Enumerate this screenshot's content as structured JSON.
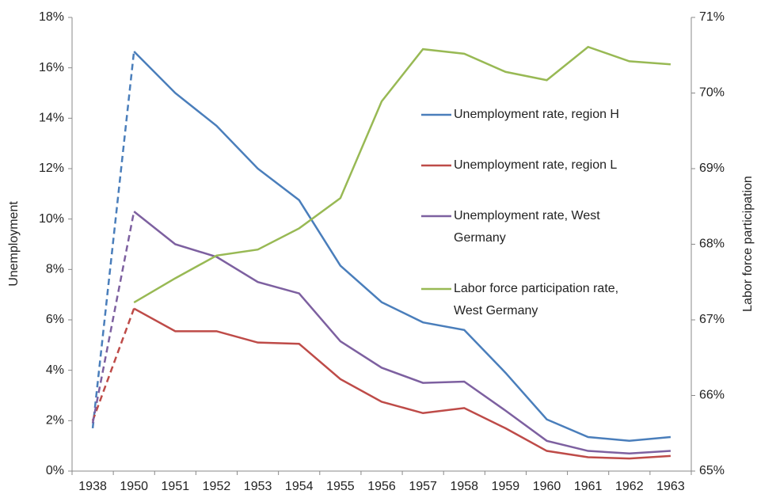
{
  "chart_data": {
    "type": "line",
    "y_label": "Unemployment",
    "y2_label": "Labor force participation",
    "categories": [
      "1938",
      "1950",
      "1951",
      "1952",
      "1953",
      "1954",
      "1955",
      "1956",
      "1957",
      "1958",
      "1959",
      "1960",
      "1961",
      "1962",
      "1963"
    ],
    "ylim": [
      0,
      18
    ],
    "yticks": [
      {
        "value": 0,
        "label": "0%"
      },
      {
        "value": 2,
        "label": "2%"
      },
      {
        "value": 4,
        "label": "4%"
      },
      {
        "value": 6,
        "label": "6%"
      },
      {
        "value": 8,
        "label": "8%"
      },
      {
        "value": 10,
        "label": "10%"
      },
      {
        "value": 12,
        "label": "12%"
      },
      {
        "value": 14,
        "label": "14%"
      },
      {
        "value": 16,
        "label": "16%"
      },
      {
        "value": 18,
        "label": "18%"
      }
    ],
    "y2lim": [
      65,
      71
    ],
    "y2ticks": [
      {
        "value": 65,
        "label": "65%"
      },
      {
        "value": 66,
        "label": "66%"
      },
      {
        "value": 67,
        "label": "67%"
      },
      {
        "value": 68,
        "label": "68%"
      },
      {
        "value": 69,
        "label": "69%"
      },
      {
        "value": 70,
        "label": "70%"
      },
      {
        "value": 71,
        "label": "71%"
      }
    ],
    "grid": false,
    "legend": "right",
    "series": [
      {
        "name": "Unemployment rate, region H",
        "color": "#4a7ebb",
        "dashed_first_segment": true,
        "values": [
          1.7,
          16.65,
          15.0,
          13.7,
          12.0,
          10.75,
          8.15,
          6.7,
          5.9,
          5.6,
          3.9,
          2.05,
          1.35,
          1.2,
          1.35
        ]
      },
      {
        "name": "Unemployment rate, region L",
        "color": "#be4b48",
        "dashed_first_segment": true,
        "values": [
          2.0,
          6.45,
          5.55,
          5.55,
          5.1,
          5.05,
          3.65,
          2.75,
          2.3,
          2.5,
          1.7,
          0.8,
          0.55,
          0.5,
          0.6
        ]
      },
      {
        "name": "Unemployment rate, West Germany",
        "color": "#7d60a0",
        "dashed_first_segment": true,
        "values": [
          1.9,
          10.3,
          9.0,
          8.5,
          7.5,
          7.05,
          5.15,
          4.1,
          3.5,
          3.55,
          2.4,
          1.2,
          0.8,
          0.7,
          0.8
        ]
      },
      {
        "name": "Labor force participation rate, West Germany",
        "color": "#98b954",
        "axis": "y2",
        "dashed_first_segment": false,
        "values": [
          null,
          67.23,
          67.55,
          67.85,
          67.93,
          68.21,
          68.61,
          69.89,
          70.58,
          70.52,
          70.28,
          70.17,
          70.61,
          70.42,
          70.38
        ]
      }
    ]
  }
}
